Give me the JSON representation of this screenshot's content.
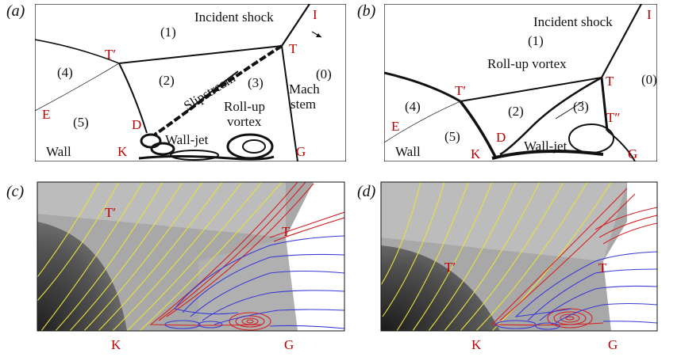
{
  "panels": {
    "a": "(a)",
    "b": "(b)",
    "c": "(c)",
    "d": "(d)"
  },
  "panel_a": {
    "incident_shock": "Incident shock",
    "I": "I",
    "T": "T",
    "Tp": "T′",
    "E": "E",
    "D": "D",
    "K": "K",
    "G": "G",
    "r1": "(1)",
    "r2": "(2)",
    "r3": "(3)",
    "r4": "(4)",
    "r5": "(5)",
    "r0": "(0)",
    "slipstream": "Slipstream",
    "rollup1": "Roll-up",
    "rollup2": "vortex",
    "mach1": "Mach",
    "mach2": "stem",
    "wall": "Wall",
    "walljet": "Wall-jet"
  },
  "panel_b": {
    "incident_shock": "Incident shock",
    "I": "I",
    "T": "T",
    "Tp": "T′",
    "Tpp": "T″",
    "E": "E",
    "D": "D",
    "K": "K",
    "G": "G",
    "r1": "(1)",
    "r2": "(2)",
    "r3": "(3)",
    "r4": "(4)",
    "r5": "(5)",
    "r0": "(0)",
    "rollup": "Roll-up vortex",
    "wall": "Wall",
    "walljet": "Wall-jet"
  },
  "panel_c": {
    "Tp": "T′",
    "T": "T",
    "K": "K",
    "G": "G"
  },
  "panel_d": {
    "Tp": "T′",
    "T": "T",
    "K": "K",
    "G": "G"
  },
  "colors": {
    "label_red": "#c00000",
    "stream_yellow": "#e8e23a",
    "stream_red": "#d42020",
    "stream_blue": "#3a3ad8"
  }
}
